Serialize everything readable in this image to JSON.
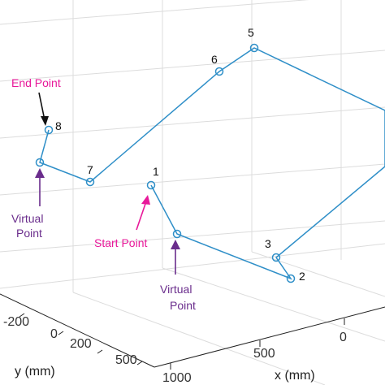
{
  "chart_data": {
    "type": "line",
    "subtype": "3d-path",
    "xlabel": "x (mm)",
    "ylabel": "y (mm)",
    "x_ticks": [
      "1000",
      "500",
      "0"
    ],
    "y_ticks": [
      "-200",
      "0",
      "200",
      "500"
    ],
    "grid": true,
    "line_color": "#2f8fc8",
    "marker": "open-circle",
    "series": [
      {
        "points": [
          {
            "label": "8"
          },
          {
            "label": ""
          },
          {
            "label": "7"
          },
          {
            "label": "6"
          },
          {
            "label": "5"
          },
          {
            "label": ""
          },
          {
            "label": "3"
          },
          {
            "label": "2"
          },
          {
            "label": ""
          },
          {
            "label": "1"
          }
        ]
      }
    ],
    "annotations": [
      {
        "text": "End Point",
        "color": "#e8199a"
      },
      {
        "text": "Virtual Point",
        "lines": [
          "Virtual",
          "Point"
        ],
        "color": "#6a2d8c"
      },
      {
        "text": "Start Point",
        "color": "#e8199a"
      },
      {
        "text": "Virtual Point",
        "lines": [
          "Virtual",
          "Point"
        ],
        "color": "#6a2d8c"
      }
    ]
  }
}
